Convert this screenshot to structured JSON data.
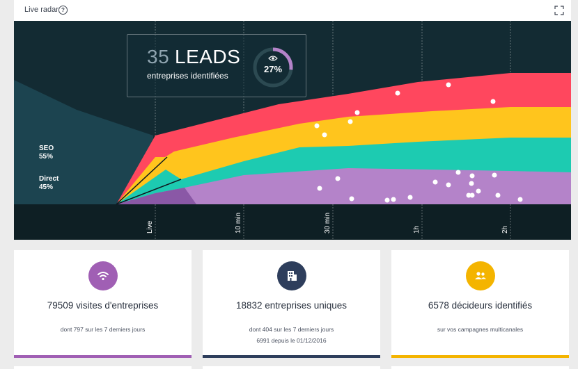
{
  "radar": {
    "title": "Live radar",
    "help": "?",
    "leads_count": "35",
    "leads_label": "LEADS",
    "leads_sub": "entreprises identifiées",
    "percent_label": "27%",
    "percent_value": 0.27,
    "segments": [
      {
        "name": "SEO",
        "pct": "55%"
      },
      {
        "name": "Direct",
        "pct": "45%"
      }
    ]
  },
  "chart_data": {
    "type": "area",
    "title": "Live radar",
    "x_ticks": [
      "Live",
      "10 min",
      "30 min",
      "1h",
      "2h"
    ],
    "series": [
      {
        "name": "violet",
        "color": "#b483c9"
      },
      {
        "name": "turquoise",
        "color": "#1dcbb1"
      },
      {
        "name": "yellow",
        "color": "#ffc51d"
      },
      {
        "name": "red",
        "color": "#ff475e"
      }
    ]
  },
  "cards": [
    {
      "title": "79509 visites d'entreprises",
      "sub1": "dont 797 sur les 7 derniers jours",
      "sub2": "",
      "color": "#a05fb4",
      "icon": "wifi-icon"
    },
    {
      "title": "18832 entreprises uniques",
      "sub1": "dont 404 sur les 7 derniers jours",
      "sub2": "6991 depuis le 01/12/2016",
      "color": "#2e3e5c",
      "icon": "building-icon"
    },
    {
      "title": "6578 décideurs identifiés",
      "sub1": "sur vos campagnes multicanales",
      "sub2": "",
      "color": "#f4b400",
      "icon": "people-icon"
    }
  ],
  "colors": {
    "chart_bg": "#132b33",
    "axis_bg": "#0e1f24"
  }
}
